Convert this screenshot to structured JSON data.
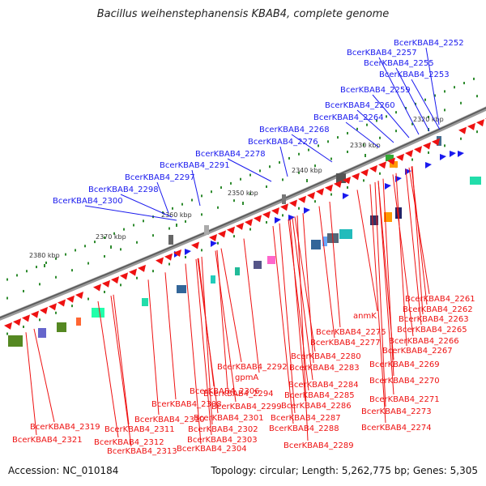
{
  "title": "Bacillus weihenstephanensis KBAB4, complete genome",
  "accession": "Accession: NC_010184",
  "topology": "Topology: circular; Length: 5,262,775 bp; Genes: 5,305",
  "colors": {
    "forward": "#1a1aee",
    "reverse": "#ee1111",
    "backbone": "#777777",
    "ruler_dots": "#2e8b2e"
  },
  "kbp_ticks": [
    {
      "label": "2320 kbp"
    },
    {
      "label": "2330 kbp"
    },
    {
      "label": "2340 kbp"
    },
    {
      "label": "2350 kbp"
    },
    {
      "label": "2360 kbp"
    },
    {
      "label": "2370 kbp"
    },
    {
      "label": "2380 kbp"
    }
  ],
  "forward_labels": [
    "BcerKBAB4_2252",
    "BcerKBAB4_2257",
    "BcerKBAB4_2255",
    "BcerKBAB4_2253",
    "BcerKBAB4_2259",
    "BcerKBAB4_2260",
    "BcerKBAB4_2264",
    "BcerKBAB4_2268",
    "BcerKBAB4_2276",
    "BcerKBAB4_2278",
    "BcerKBAB4_2291",
    "BcerKBAB4_2297",
    "BcerKBAB4_2298",
    "BcerKBAB4_2300"
  ],
  "reverse_labels": [
    "BcerKBAB4_2261",
    "BcerKBAB4_2262",
    "BcerKBAB4_2263",
    "anmK",
    "BcerKBAB4_2265",
    "BcerKBAB4_2275",
    "BcerKBAB4_2266",
    "BcerKBAB4_2277",
    "BcerKBAB4_2267",
    "BcerKBAB4_2280",
    "BcerKBAB4_2269",
    "BcerKBAB4_2283",
    "BcerKBAB4_2292",
    "gpmA",
    "BcerKBAB4_2270",
    "BcerKBAB4_2284",
    "BcerKBAB4_2306",
    "BcerKBAB4_2294",
    "BcerKBAB4_2285",
    "BcerKBAB4_2271",
    "BcerKBAB4_2308",
    "BcerKBAB4_2299",
    "BcerKBAB4_2286",
    "BcerKBAB4_2310",
    "BcerKBAB4_2301",
    "BcerKBAB4_2287",
    "BcerKBAB4_2273",
    "BcerKBAB4_2319",
    "BcerKBAB4_2311",
    "BcerKBAB4_2302",
    "BcerKBAB4_2288",
    "BcerKBAB4_2274",
    "BcerKBAB4_2321",
    "BcerKBAB4_2312",
    "BcerKBAB4_2303",
    "BcerKBAB4_2289",
    "BcerKBAB4_2313",
    "BcerKBAB4_2304"
  ]
}
